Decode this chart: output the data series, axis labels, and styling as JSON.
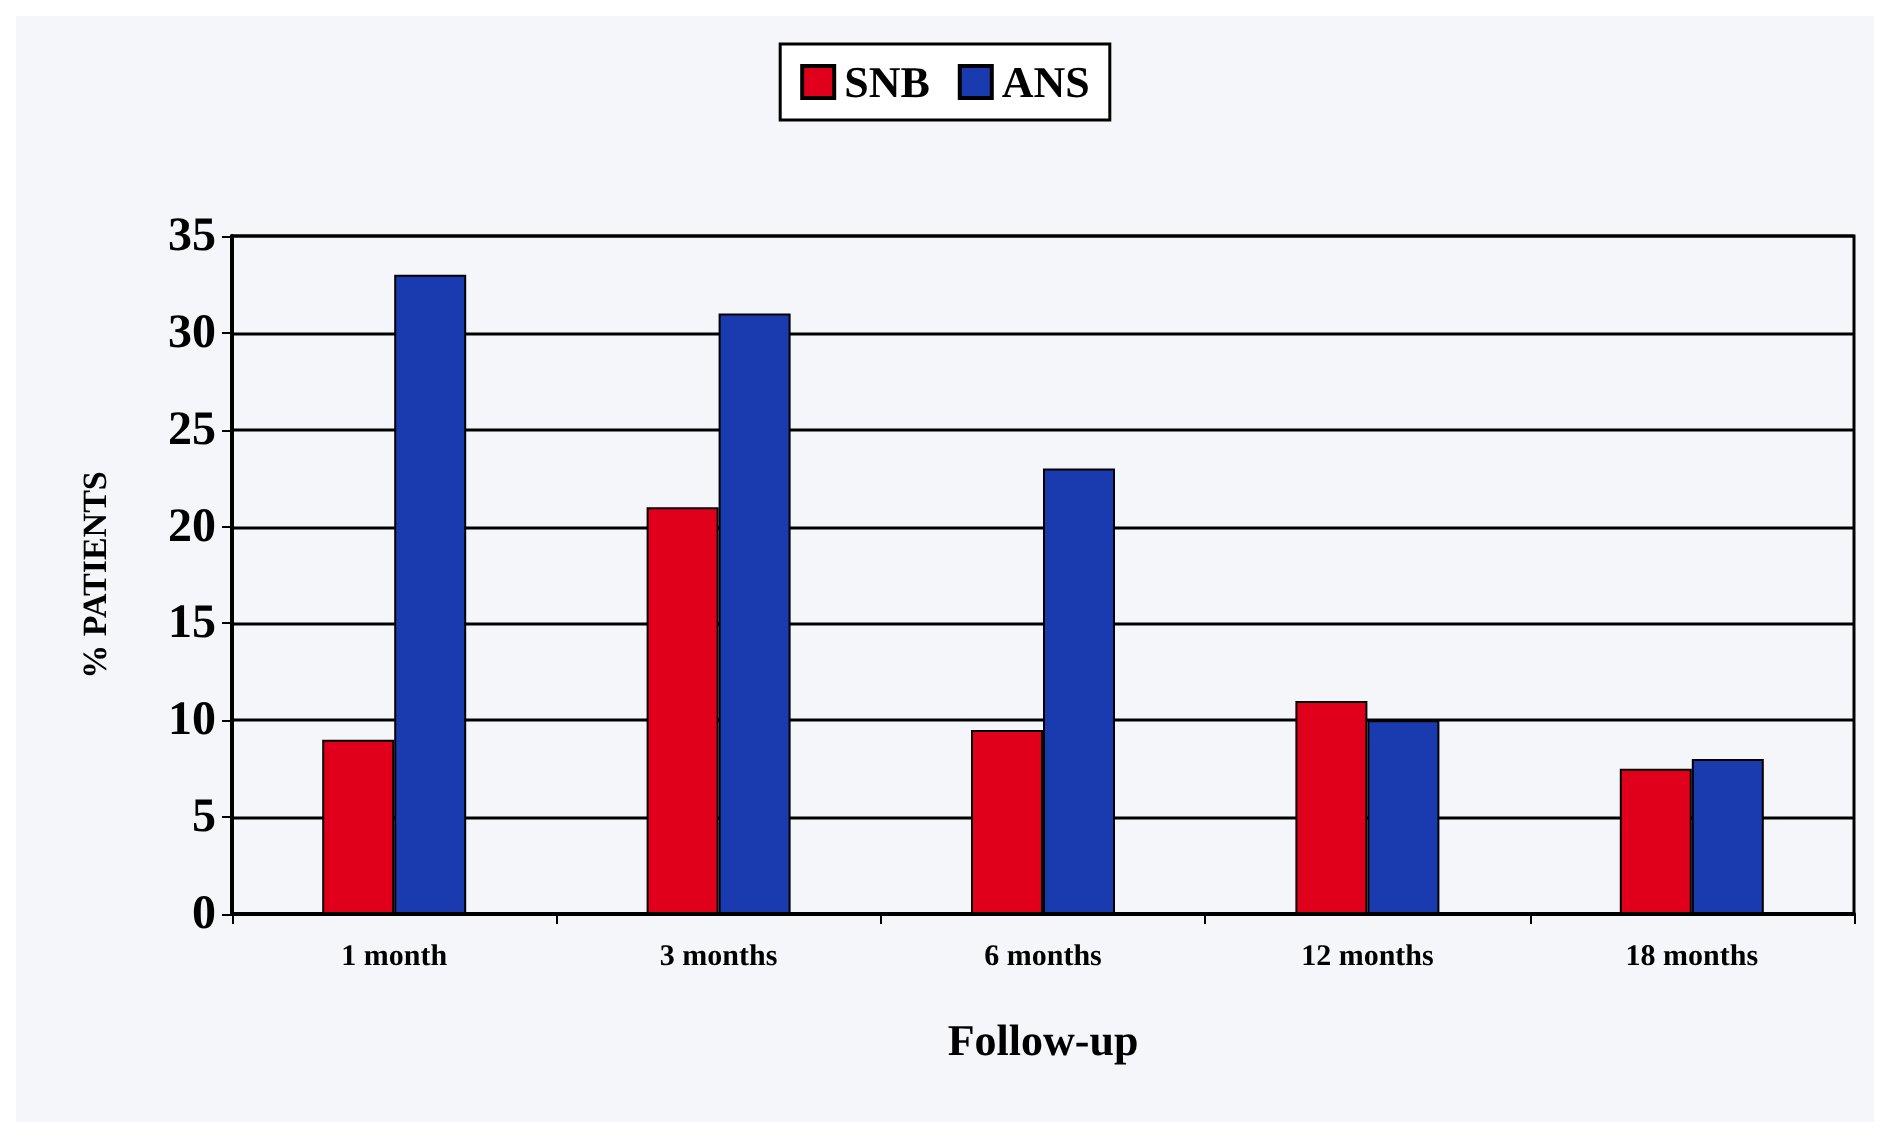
{
  "chart_data": {
    "type": "bar",
    "xlabel": "Follow-up",
    "ylabel": "% PATIENTS",
    "categories": [
      "1 month",
      "3 months",
      "6 months",
      "12 months",
      "18 months"
    ],
    "series": [
      {
        "name": "SNB",
        "color": "#e0001b",
        "values": [
          9,
          21,
          9.5,
          11,
          7.5
        ]
      },
      {
        "name": "ANS",
        "color": "#1a3bb0",
        "values": [
          33,
          31,
          23,
          10,
          8
        ]
      }
    ],
    "ylim": [
      0,
      35
    ],
    "yticks": [
      0,
      5,
      10,
      15,
      20,
      25,
      30,
      35
    ],
    "grid": "y",
    "legend": "top"
  }
}
